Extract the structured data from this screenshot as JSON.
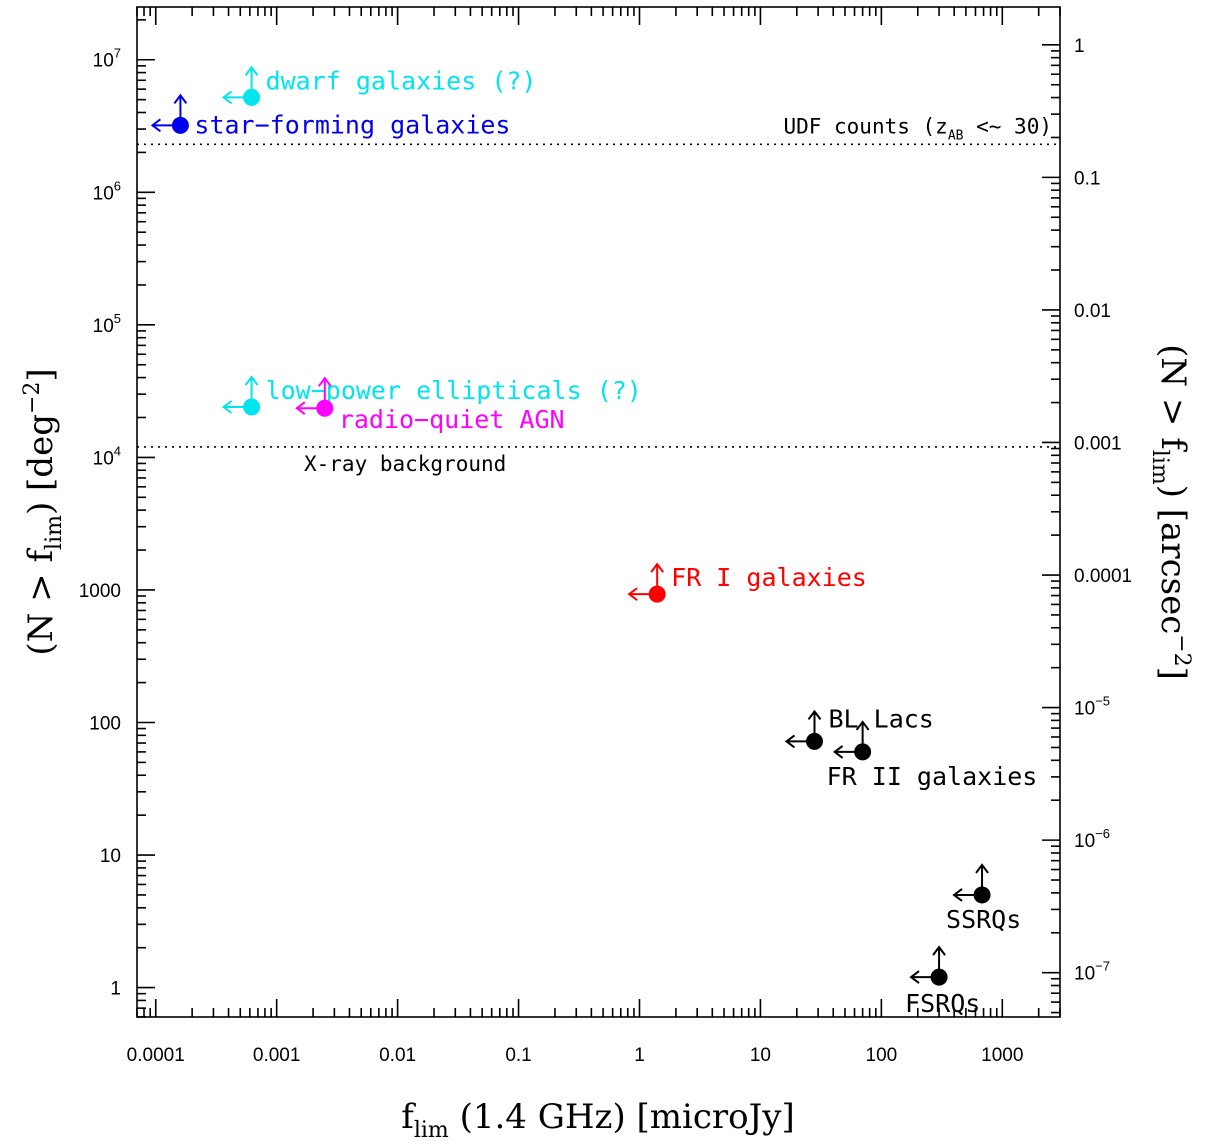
{
  "chart_data": {
    "type": "scatter",
    "x_scale": "log",
    "y_scale": "log",
    "xlim": [
      7e-05,
      3000
    ],
    "ylim": [
      0.6,
      25000000
    ],
    "xlabel": {
      "main": "f",
      "sub": "lim",
      "rest": " (1.4 GHz) [microJy]"
    },
    "ylabel": {
      "pre": "(N > f",
      "sub": "lim",
      "mid": ") [deg",
      "sup": "−2",
      "post": "]"
    },
    "y2label": {
      "pre": "(N > f",
      "sub": "lim",
      "mid": ") [arcsec",
      "sup": "−2",
      "post": "]"
    },
    "x_ticks": [
      {
        "value": 0.0001,
        "label": "0.0001"
      },
      {
        "value": 0.001,
        "label": "0.001"
      },
      {
        "value": 0.01,
        "label": "0.01"
      },
      {
        "value": 0.1,
        "label": "0.1"
      },
      {
        "value": 1,
        "label": "1"
      },
      {
        "value": 10,
        "label": "10"
      },
      {
        "value": 100,
        "label": "100"
      },
      {
        "value": 1000,
        "label": "1000"
      }
    ],
    "y_ticks": [
      {
        "value": 1,
        "label": "1"
      },
      {
        "value": 10,
        "label": "10"
      },
      {
        "value": 100,
        "label": "100"
      },
      {
        "value": 1000,
        "label": "1000"
      },
      {
        "value": 10000,
        "base": "10",
        "exp": "4"
      },
      {
        "value": 100000,
        "base": "10",
        "exp": "5"
      },
      {
        "value": 1000000,
        "base": "10",
        "exp": "6"
      },
      {
        "value": 10000000,
        "base": "10",
        "exp": "7"
      }
    ],
    "y2_ticks": [
      {
        "value": 1,
        "label": "1"
      },
      {
        "value": 0.1,
        "label": "0.1"
      },
      {
        "value": 0.01,
        "label": "0.01"
      },
      {
        "value": 0.001,
        "label": "0.001"
      },
      {
        "value": 0.0001,
        "label": "0.0001"
      },
      {
        "value": 1e-05,
        "base": "10",
        "exp": "−5"
      },
      {
        "value": 1e-06,
        "base": "10",
        "exp": "−6"
      },
      {
        "value": 1e-07,
        "base": "10",
        "exp": "−7"
      }
    ],
    "deg2_to_arcsec2": 12960000,
    "hlines": [
      {
        "y": 2300000,
        "label": "UDF counts (z",
        "label_sub": "AB",
        "label_rest": " <~ 30)",
        "anchor": "end"
      },
      {
        "y": 12000,
        "label": "X-ray background",
        "anchor": "start"
      }
    ],
    "points": [
      {
        "name": "star−forming galaxies",
        "x": 0.00016,
        "y": 3200000,
        "color": "#0000ee",
        "label_dx": 14,
        "label_dy": 8
      },
      {
        "name": "dwarf galaxies (?)",
        "x": 0.00062,
        "y": 5200000,
        "color": "#00e5ee",
        "label_dx": 14,
        "label_dy": -8
      },
      {
        "name": "low−power ellipticals (?)",
        "x": 0.00062,
        "y": 24000,
        "color": "#00e5ee",
        "label_dx": 14,
        "label_dy": -8
      },
      {
        "name": "radio−quiet AGN",
        "x": 0.0025,
        "y": 23500,
        "color": "#ff00ff",
        "label_dx": 14,
        "label_dy": 20
      },
      {
        "name": "FR I galaxies",
        "x": 1.4,
        "y": 930,
        "color": "#ff0000",
        "label_dx": 14,
        "label_dy": -8
      },
      {
        "name": "BL Lacs",
        "x": 28,
        "y": 72,
        "color": "#000000",
        "label_dx": 14,
        "label_dy": -14
      },
      {
        "name": "FR II galaxies",
        "x": 70,
        "y": 60,
        "color": "#000000",
        "label_dx": -36,
        "label_dy": 33
      },
      {
        "name": "SSRQs",
        "x": 680,
        "y": 5,
        "color": "#000000",
        "label_dx": -36,
        "label_dy": 33
      },
      {
        "name": "FSRQs",
        "x": 300,
        "y": 1.2,
        "color": "#000000",
        "label_dx": -34,
        "label_dy": 35
      }
    ]
  }
}
